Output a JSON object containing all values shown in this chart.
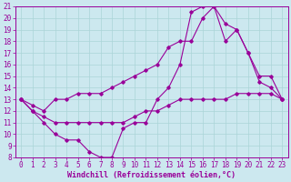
{
  "xlabel": "Windchill (Refroidissement éolien,°C)",
  "xlim": [
    -0.5,
    23.5
  ],
  "ylim": [
    8,
    21
  ],
  "yticks": [
    8,
    9,
    10,
    11,
    12,
    13,
    14,
    15,
    16,
    17,
    18,
    19,
    20,
    21
  ],
  "xticks": [
    0,
    1,
    2,
    3,
    4,
    5,
    6,
    7,
    8,
    9,
    10,
    11,
    12,
    13,
    14,
    15,
    16,
    17,
    18,
    19,
    20,
    21,
    22,
    23
  ],
  "bg_color": "#cce8ef",
  "line_color": "#990099",
  "grid_color": "#aad4d8",
  "line1_x": [
    0,
    1,
    2,
    3,
    4,
    5,
    6,
    7,
    8,
    9,
    10,
    11,
    12,
    13,
    14,
    15,
    16,
    17,
    18,
    19,
    20,
    21,
    22,
    23
  ],
  "line1_y": [
    13,
    12,
    11,
    10,
    9.5,
    9.5,
    8.5,
    8,
    8,
    10.5,
    11,
    11,
    13,
    14,
    16,
    20.5,
    21,
    21,
    18,
    19,
    17,
    15,
    15,
    13
  ],
  "line2_x": [
    0,
    1,
    2,
    3,
    4,
    5,
    6,
    7,
    8,
    9,
    10,
    11,
    12,
    13,
    14,
    15,
    16,
    17,
    18,
    19,
    20,
    21,
    22,
    23
  ],
  "line2_y": [
    13,
    12.5,
    12,
    13,
    13,
    13.5,
    13.5,
    13.5,
    14,
    14.5,
    15,
    15.5,
    16,
    17.5,
    18,
    18,
    20,
    21,
    19.5,
    19,
    17,
    14.5,
    14,
    13
  ],
  "line3_x": [
    0,
    1,
    2,
    3,
    4,
    5,
    6,
    7,
    8,
    9,
    10,
    11,
    12,
    13,
    14,
    15,
    16,
    17,
    18,
    19,
    20,
    21,
    22,
    23
  ],
  "line3_y": [
    13,
    12,
    11.5,
    11,
    11,
    11,
    11,
    11,
    11,
    11,
    11.5,
    12,
    12,
    12.5,
    13,
    13,
    13,
    13,
    13,
    13.5,
    13.5,
    13.5,
    13.5,
    13
  ],
  "marker": "D",
  "markersize": 1.8,
  "linewidth": 0.8,
  "tick_fontsize": 5.5,
  "xlabel_fontsize": 6.0
}
